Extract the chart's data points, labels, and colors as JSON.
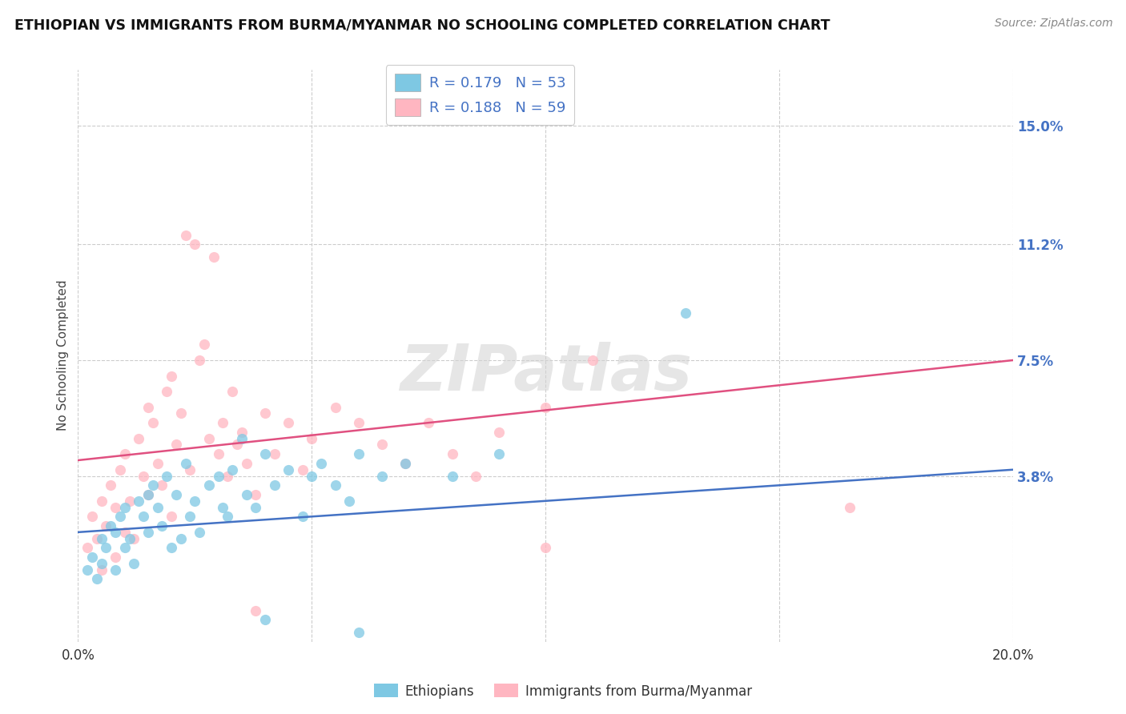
{
  "title": "ETHIOPIAN VS IMMIGRANTS FROM BURMA/MYANMAR NO SCHOOLING COMPLETED CORRELATION CHART",
  "source": "Source: ZipAtlas.com",
  "ylabel": "No Schooling Completed",
  "ytick_labels": [
    "15.0%",
    "11.2%",
    "7.5%",
    "3.8%"
  ],
  "ytick_values": [
    0.15,
    0.112,
    0.075,
    0.038
  ],
  "xlim": [
    0.0,
    0.2
  ],
  "ylim": [
    -0.015,
    0.168
  ],
  "R_blue": 0.179,
  "N_blue": 53,
  "R_pink": 0.188,
  "N_pink": 59,
  "watermark": "ZIPatlas",
  "legend_label_blue": "Ethiopians",
  "legend_label_pink": "Immigrants from Burma/Myanmar",
  "blue_color": "#7ec8e3",
  "pink_color": "#ffb6c1",
  "blue_line_color": "#4472c4",
  "pink_line_color": "#e05080",
  "blue_line_x0": 0.0,
  "blue_line_y0": 0.02,
  "blue_line_x1": 0.2,
  "blue_line_y1": 0.04,
  "pink_line_x0": 0.0,
  "pink_line_y0": 0.043,
  "pink_line_x1": 0.2,
  "pink_line_y1": 0.075,
  "blue_scatter": [
    [
      0.002,
      0.008
    ],
    [
      0.003,
      0.012
    ],
    [
      0.004,
      0.005
    ],
    [
      0.005,
      0.018
    ],
    [
      0.005,
      0.01
    ],
    [
      0.006,
      0.015
    ],
    [
      0.007,
      0.022
    ],
    [
      0.008,
      0.008
    ],
    [
      0.008,
      0.02
    ],
    [
      0.009,
      0.025
    ],
    [
      0.01,
      0.015
    ],
    [
      0.01,
      0.028
    ],
    [
      0.011,
      0.018
    ],
    [
      0.012,
      0.01
    ],
    [
      0.013,
      0.03
    ],
    [
      0.014,
      0.025
    ],
    [
      0.015,
      0.032
    ],
    [
      0.015,
      0.02
    ],
    [
      0.016,
      0.035
    ],
    [
      0.017,
      0.028
    ],
    [
      0.018,
      0.022
    ],
    [
      0.019,
      0.038
    ],
    [
      0.02,
      0.015
    ],
    [
      0.021,
      0.032
    ],
    [
      0.022,
      0.018
    ],
    [
      0.023,
      0.042
    ],
    [
      0.024,
      0.025
    ],
    [
      0.025,
      0.03
    ],
    [
      0.026,
      0.02
    ],
    [
      0.028,
      0.035
    ],
    [
      0.03,
      0.038
    ],
    [
      0.031,
      0.028
    ],
    [
      0.032,
      0.025
    ],
    [
      0.033,
      0.04
    ],
    [
      0.035,
      0.05
    ],
    [
      0.036,
      0.032
    ],
    [
      0.038,
      0.028
    ],
    [
      0.04,
      0.045
    ],
    [
      0.042,
      0.035
    ],
    [
      0.045,
      0.04
    ],
    [
      0.048,
      0.025
    ],
    [
      0.05,
      0.038
    ],
    [
      0.052,
      0.042
    ],
    [
      0.055,
      0.035
    ],
    [
      0.058,
      0.03
    ],
    [
      0.06,
      0.045
    ],
    [
      0.065,
      0.038
    ],
    [
      0.07,
      0.042
    ],
    [
      0.08,
      0.038
    ],
    [
      0.09,
      0.045
    ],
    [
      0.13,
      0.09
    ],
    [
      0.04,
      -0.008
    ],
    [
      0.06,
      -0.012
    ]
  ],
  "pink_scatter": [
    [
      0.002,
      0.015
    ],
    [
      0.003,
      0.025
    ],
    [
      0.004,
      0.018
    ],
    [
      0.005,
      0.03
    ],
    [
      0.005,
      0.008
    ],
    [
      0.006,
      0.022
    ],
    [
      0.007,
      0.035
    ],
    [
      0.008,
      0.012
    ],
    [
      0.008,
      0.028
    ],
    [
      0.009,
      0.04
    ],
    [
      0.01,
      0.02
    ],
    [
      0.01,
      0.045
    ],
    [
      0.011,
      0.03
    ],
    [
      0.012,
      0.018
    ],
    [
      0.013,
      0.05
    ],
    [
      0.014,
      0.038
    ],
    [
      0.015,
      0.06
    ],
    [
      0.015,
      0.032
    ],
    [
      0.016,
      0.055
    ],
    [
      0.017,
      0.042
    ],
    [
      0.018,
      0.035
    ],
    [
      0.019,
      0.065
    ],
    [
      0.02,
      0.025
    ],
    [
      0.02,
      0.07
    ],
    [
      0.021,
      0.048
    ],
    [
      0.022,
      0.058
    ],
    [
      0.023,
      0.115
    ],
    [
      0.024,
      0.04
    ],
    [
      0.025,
      0.112
    ],
    [
      0.026,
      0.075
    ],
    [
      0.027,
      0.08
    ],
    [
      0.028,
      0.05
    ],
    [
      0.029,
      0.108
    ],
    [
      0.03,
      0.045
    ],
    [
      0.031,
      0.055
    ],
    [
      0.032,
      0.038
    ],
    [
      0.033,
      0.065
    ],
    [
      0.034,
      0.048
    ],
    [
      0.035,
      0.052
    ],
    [
      0.036,
      0.042
    ],
    [
      0.038,
      0.032
    ],
    [
      0.04,
      0.058
    ],
    [
      0.042,
      0.045
    ],
    [
      0.045,
      0.055
    ],
    [
      0.048,
      0.04
    ],
    [
      0.05,
      0.05
    ],
    [
      0.055,
      0.06
    ],
    [
      0.06,
      0.055
    ],
    [
      0.065,
      0.048
    ],
    [
      0.07,
      0.042
    ],
    [
      0.075,
      0.055
    ],
    [
      0.08,
      0.045
    ],
    [
      0.085,
      0.038
    ],
    [
      0.09,
      0.052
    ],
    [
      0.1,
      0.06
    ],
    [
      0.11,
      0.075
    ],
    [
      0.165,
      0.028
    ],
    [
      0.038,
      -0.005
    ],
    [
      0.1,
      0.015
    ]
  ]
}
